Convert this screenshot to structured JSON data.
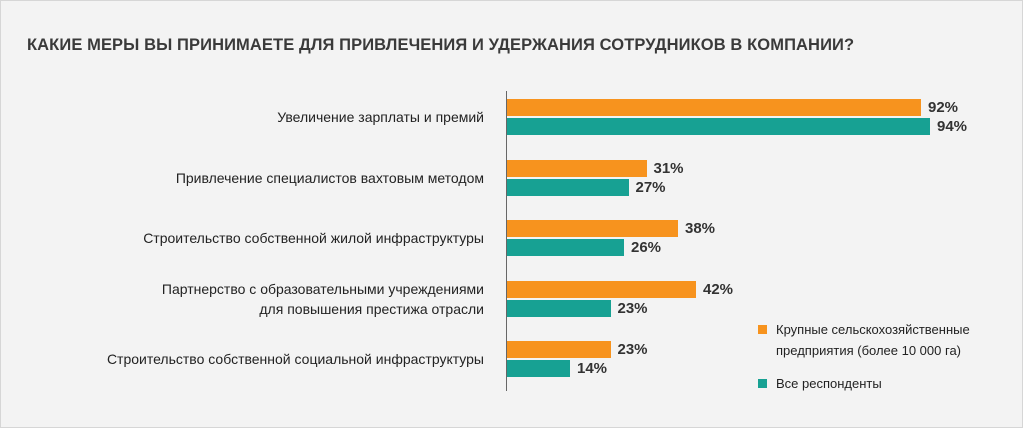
{
  "colors": {
    "large": "#f7931e",
    "all": "#17a193",
    "background": "#f3f3f3"
  },
  "chart_data": {
    "type": "bar",
    "orientation": "horizontal",
    "title": "КАКИЕ МЕРЫ ВЫ ПРИНИМАЕТЕ ДЛЯ ПРИВЛЕЧЕНИЯ И УДЕРЖАНИЯ СОТРУДНИКОВ В КОМПАНИИ?",
    "categories": [
      [
        "Увеличение зарплаты и премий"
      ],
      [
        "Привлечение специалистов вахтовым методом"
      ],
      [
        "Строительство собственной жилой инфраструктуры"
      ],
      [
        "Партнерство с образовательными учреждениями",
        "для повышения престижа отрасли"
      ],
      [
        "Строительство собственной социальной инфраструктуры"
      ]
    ],
    "xlim": [
      0,
      100
    ],
    "unit": "%",
    "series": [
      {
        "name": "Крупные сельскохозяйственные предприятия (более 10 000 га)",
        "legend_lines": [
          "Крупные сельскохозяйственные",
          "предприятия (более 10 000 га)"
        ],
        "color": "#f7931e",
        "values": [
          92,
          31,
          38,
          42,
          23
        ]
      },
      {
        "name": "Все респонденты",
        "legend_lines": [
          "Все респонденты"
        ],
        "color": "#17a193",
        "values": [
          94,
          27,
          26,
          23,
          14
        ]
      }
    ],
    "legend_position": "bottom-right"
  }
}
